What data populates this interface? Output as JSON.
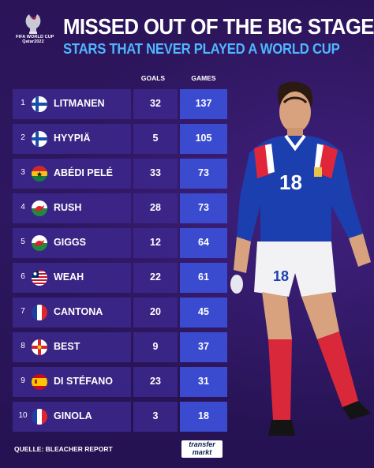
{
  "logo": {
    "line1": "FIFA WORLD CUP",
    "line2": "Qatar2022"
  },
  "title": "MISSED OUT OF THE BIG STAGE",
  "subtitle": "STARS THAT NEVER PLAYED A WORLD CUP",
  "columns": {
    "goals": "GOALS",
    "games": "GAMES"
  },
  "rows": [
    {
      "rank": "1",
      "flag": "finland",
      "name": "LITMANEN",
      "goals": "32",
      "games": "137"
    },
    {
      "rank": "2",
      "flag": "finland",
      "name": "HYYPIÄ",
      "goals": "5",
      "games": "105"
    },
    {
      "rank": "3",
      "flag": "ghana",
      "name": "ABÉDI PELÉ",
      "goals": "33",
      "games": "73"
    },
    {
      "rank": "4",
      "flag": "wales",
      "name": "RUSH",
      "goals": "28",
      "games": "73"
    },
    {
      "rank": "5",
      "flag": "wales",
      "name": "GIGGS",
      "goals": "12",
      "games": "64"
    },
    {
      "rank": "6",
      "flag": "liberia",
      "name": "WEAH",
      "goals": "22",
      "games": "61"
    },
    {
      "rank": "7",
      "flag": "france",
      "name": "CANTONA",
      "goals": "20",
      "games": "45"
    },
    {
      "rank": "8",
      "flag": "northern-ireland",
      "name": "BEST",
      "goals": "9",
      "games": "37"
    },
    {
      "rank": "9",
      "flag": "spain",
      "name": "DI STÉFANO",
      "goals": "23",
      "games": "31"
    },
    {
      "rank": "10",
      "flag": "france",
      "name": "GINOLA",
      "goals": "3",
      "games": "18"
    }
  ],
  "player": {
    "shirt_number": "18",
    "shorts_number": "18"
  },
  "source": "QUELLE: BLEACHER REPORT",
  "brand": {
    "line1": "transfer",
    "line2": "markt"
  },
  "colors": {
    "background": "#2a1556",
    "name_cell": "#3c288c",
    "games_cell": "#3a4bd0",
    "subtitle": "#4fb6ff"
  }
}
